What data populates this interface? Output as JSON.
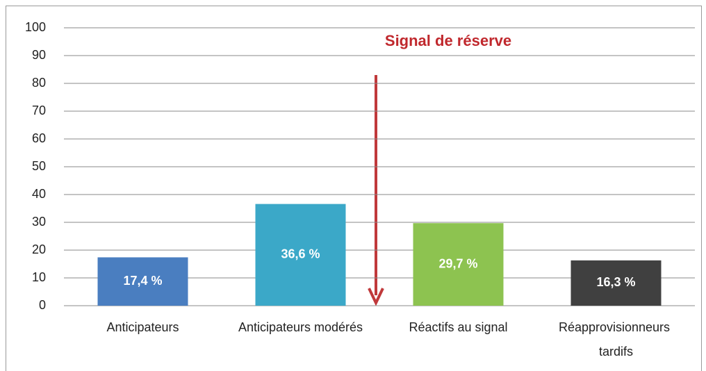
{
  "chart_data": {
    "type": "bar",
    "annotation": "Signal de réserve",
    "categories": [
      "Anticipateurs",
      "Anticipateurs modérés",
      "Réactifs au signal",
      "Réapprovisionneurs tardifs"
    ],
    "values": [
      17.4,
      36.6,
      29.7,
      16.3
    ],
    "value_labels": [
      "17,4 %",
      "36,6 %",
      "29,7 %",
      "16,3 %"
    ],
    "colors": [
      "#4a7ec0",
      "#3ba8c8",
      "#8dc350",
      "#404040"
    ],
    "ylim": [
      0,
      100
    ],
    "yticks": [
      0,
      10,
      20,
      30,
      40,
      50,
      60,
      70,
      80,
      90,
      100
    ],
    "grid": true
  }
}
